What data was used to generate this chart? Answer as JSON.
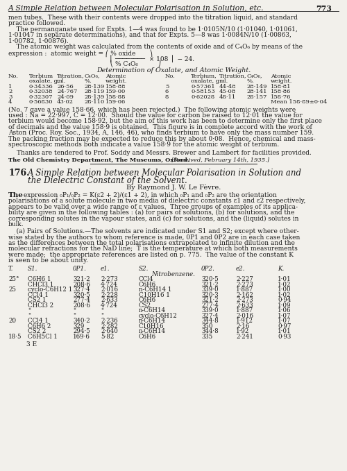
{
  "bg_color": "#f2f0eb",
  "text_color": "#1a1a1a",
  "page_title_italic": "A Simple Relation between Molecular Polarisation in Solution, etc.",
  "page_number": "773",
  "top_body_lines": [
    "men tubes.  These with their contents were dropped into the titration liquid, and standard",
    "practice followed.",
    "    The permanganate used for Expts. 1—4 was found to be 1·0105N/10 (1·01040, 1·01061,",
    "1·01047 in separate determinations), and that for Expts. 5—8 was 1·0084N/10 (1·00863,",
    "1·00782, 1·00876)."
  ],
  "atomic_line": "    The atomic weight was calculated from the contents of oxide and of C₄O₆ by means of the",
  "expr_line1": "expression :  atomic weight = ⎛ % oxide       ⎞",
  "expr_line2": "                                                   ⎜ ────────  × 108 ⎟  − 24.",
  "expr_line3": "                                                   ⎝ % C₄O₆          ⎠",
  "det_title": "Determination of Oxalate, and Atomic Weight.",
  "t1h1": [
    "No.",
    "Terbium",
    "Titration,",
    "C₄O₆,",
    "Atomic",
    "No.",
    "Terbium,",
    "Titration,",
    "C₄O₆,",
    "Atomic"
  ],
  "t1h2": [
    "",
    "oxalate, g.",
    "ml.",
    "%.",
    "weight.",
    "",
    "oxalate, g.",
    "ml.",
    "%.",
    "weight."
  ],
  "t1_rows": [
    [
      "1",
      "0·34336",
      "26·56",
      "28·139",
      "158·88",
      "5",
      "0·57361",
      "44·48",
      "28·149",
      "158·81"
    ],
    [
      "2",
      "0·32038",
      "24·767",
      "28·119",
      "159·00",
      "6",
      "0·58153",
      "45·08",
      "28·141",
      "158·86"
    ],
    [
      "3",
      "0·32307",
      "24·09",
      "28·139",
      "158·88",
      "8",
      "0·62028",
      "48·11",
      "28·157",
      "158·76"
    ],
    [
      "4",
      "0·56830",
      "43·02",
      "28·110",
      "159·06",
      "",
      "",
      "",
      "",
      "Mean 158·89±0·04"
    ]
  ],
  "bottom_lines": [
    "(No. 7 gave a value 158·66, which has been rejected.)  The following atomic weights were",
    "used : Na = 22·997, C = 12·00.  Should the value for carbon be raised to 12·01 the value for",
    "terbium would become 158·92, but the aim of this work has been to determine only the first place",
    "of decimals and the value 158·9 is obtained.  This figure is in complete accord with the work of",
    "Aston (Proc. Roy. Soc., 1934, A, 146, 46), who finds terbium to have only the mass number 159.",
    "The packing fraction may be expected to reduce this by about 0·08.  Hence, chemical and mass-",
    "spectroscopic methods both indicate a value 158·9 for the atomic weight of terbium."
  ],
  "thanks_line": "Thanks are tendered to Prof. Soddy and Messrs. Brewer and Lambert for facilities provided.",
  "inst_bold": "The Old Chemistry Department, The Museums, Oxford.",
  "inst_italic": "  [Received, February 14th, 1935.]",
  "sec_num": "176.",
  "sec_title1": "A Simple Relation between Molecular Polarisation in Solution and",
  "sec_title2": "the Dielectric Constant of the Solvent.",
  "author": "By Raymond J. W. Le Fèvre.",
  "intro_lines": [
    "polarisations of a solute molecule in two media of dielectric constants ε1 and ε2 respectively,",
    "appears to be valid over a wide range of ε values.  Three groups of examples of its applica-",
    "bility are given in the following tables : (a) for pairs of solutions, (b) for solutions, and the",
    "corresponding solutes in the vapour states, and (c) for solutions, and the (liquid) solutes in",
    "bulk."
  ],
  "pairs_lines": [
    "    (a) Pairs of Solutions.—The solvents are indicated under S1 and S2; except where other-",
    "wise stated by the authors to whom reference is made, 0P1 and 0P2 are in each case taken",
    "as the differences between the total polarisations extrapolated to infinite dilution and the",
    "molecular refractions for the NaD line;  T is the temperature at which both measurements",
    "were made;  the appropriate references are listed on p. 775.  The value of the constant K",
    "is seen to be about unity."
  ],
  "t2_headers": [
    "T.",
    "S1.",
    "0P1.",
    "e1.",
    "S2.",
    "0P2.",
    "e2.",
    "K."
  ],
  "t2_section": "Nitrobenzene.",
  "t2_rows": [
    [
      "25°",
      "C6H6 1",
      "321·2",
      "2·273",
      "CCl4",
      "320·5",
      "2·227",
      "1·01"
    ],
    [
      "",
      "CHCl3 1",
      "208·6",
      "4·724",
      "C6H6",
      "321·2",
      "2·273",
      "1·02"
    ],
    [
      "25",
      "cyclo-C6H12 1",
      "327·4",
      "2·016",
      "n-C6H14 1",
      "339·0",
      "1·887",
      "1·00"
    ],
    [
      "",
      "CCl4 1",
      "320·5",
      "2·228",
      "C10H16 1",
      "320·3",
      "2·162",
      "1·02"
    ],
    [
      "",
      "CS2 1",
      "277·4",
      "2·633",
      "C6H6",
      "321·2",
      "2·273",
      "0·94"
    ],
    [
      "",
      "CHCl3 2",
      "208·6",
      "4·724",
      "CS2",
      "277·4",
      "2·633",
      "1·09"
    ],
    [
      "",
      "\"",
      "\"",
      "\"",
      "n-C6H14",
      "339·0",
      "1·887",
      "1·06"
    ],
    [
      "",
      "\"",
      "\"",
      "\"",
      "cyclo-C6H12",
      "327·4",
      "2·016",
      "1·07"
    ],
    [
      "20",
      "CCl4 1",
      "340·2",
      "2·236",
      "n-C6H14",
      "344·8",
      "1·912",
      "1·07"
    ],
    [
      "",
      "C6H6 2",
      "329",
      "2·282",
      "C10H16",
      "350",
      "2·16",
      "0·97"
    ],
    [
      "",
      "CS2 2",
      "294·5",
      "2·640",
      "n-C6H14",
      "344·8",
      "1·92",
      "1·01"
    ],
    [
      "18·5",
      "C6H5Cl 1",
      "169·6",
      "5·82",
      "C6H6",
      "335",
      "2·241",
      "0·93"
    ]
  ],
  "footer": "3 E"
}
